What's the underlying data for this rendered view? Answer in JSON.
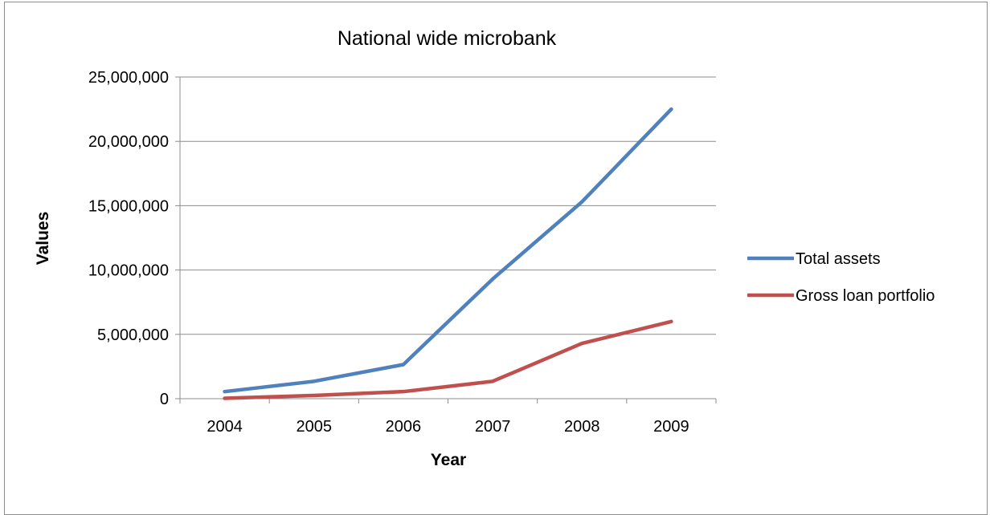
{
  "chart_data": {
    "type": "line",
    "title": "National wide microbank",
    "xlabel": "Year",
    "ylabel": "Values",
    "categories": [
      "2004",
      "2005",
      "2006",
      "2007",
      "2008",
      "2009"
    ],
    "ylim": [
      0,
      25000000
    ],
    "yticks": [
      0,
      5000000,
      10000000,
      15000000,
      20000000,
      25000000
    ],
    "ytick_labels": [
      "0",
      "5,000,000",
      "10,000,000",
      "15,000,000",
      "20,000,000",
      "25,000,000"
    ],
    "grid": true,
    "legend_position": "right",
    "series": [
      {
        "name": "Total assets",
        "color": "#4F81BD",
        "values": [
          550000,
          1350000,
          2650000,
          9300000,
          15300000,
          22500000
        ]
      },
      {
        "name": "Gross loan portfolio",
        "color": "#C0504D",
        "values": [
          30000,
          250000,
          550000,
          1350000,
          4300000,
          6000000
        ]
      }
    ]
  }
}
